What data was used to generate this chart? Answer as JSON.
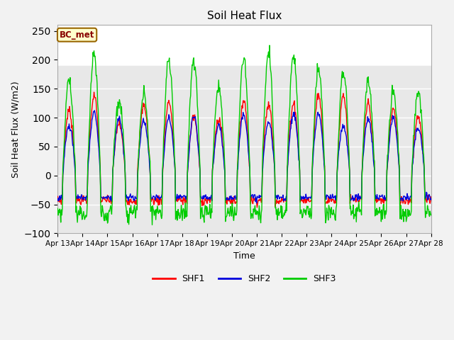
{
  "title": "Soil Heat Flux",
  "xlabel": "Time",
  "ylabel": "Soil Heat Flux (W/m2)",
  "ylim": [
    -100,
    260
  ],
  "yticks": [
    -100,
    -50,
    0,
    50,
    100,
    150,
    200,
    250
  ],
  "n_days": 15,
  "start_day": 13,
  "points_per_day": 48,
  "shf1_color": "#ff0000",
  "shf2_color": "#0000dd",
  "shf3_color": "#00cc00",
  "plot_bg": "#ffffff",
  "band_color": "#e8e8e8",
  "band_low": -100,
  "band_high": 190,
  "legend_labels": [
    "SHF1",
    "SHF2",
    "SHF3"
  ],
  "bc_met_label": "BC_met",
  "bc_met_bg": "#ffffcc",
  "bc_met_border": "#996600",
  "bc_met_text_color": "#880000",
  "figsize": [
    6.4,
    4.8
  ],
  "dpi": 100
}
